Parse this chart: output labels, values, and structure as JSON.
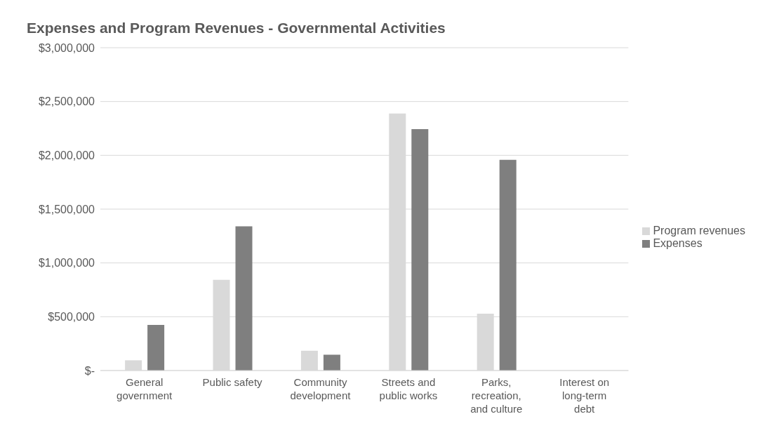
{
  "chart_data": {
    "type": "bar",
    "title": "Expenses and Program Revenues - Governmental Activities",
    "categories": [
      "General government",
      "Public safety",
      "Community development",
      "Streets and public works",
      "Parks, recreation, and culture",
      "Interest on long-term debt"
    ],
    "series": [
      {
        "name": "Program revenues",
        "color": "#d9d9d9",
        "values": [
          95000,
          843000,
          184000,
          2389000,
          529000,
          0
        ]
      },
      {
        "name": "Expenses",
        "color": "#7f7f7f",
        "values": [
          424000,
          1341000,
          147000,
          2243000,
          1958000,
          0
        ]
      }
    ],
    "ylim": [
      0,
      3000000
    ],
    "yticks": [
      {
        "value": 0,
        "label": "$-"
      },
      {
        "value": 500000,
        "label": "$500,000"
      },
      {
        "value": 1000000,
        "label": "$1,000,000"
      },
      {
        "value": 1500000,
        "label": "$1,500,000"
      },
      {
        "value": 2000000,
        "label": "$2,000,000"
      },
      {
        "value": 2500000,
        "label": "$2,500,000"
      },
      {
        "value": 3000000,
        "label": "$3,000,000"
      }
    ],
    "grid": "y",
    "legend": "right"
  }
}
